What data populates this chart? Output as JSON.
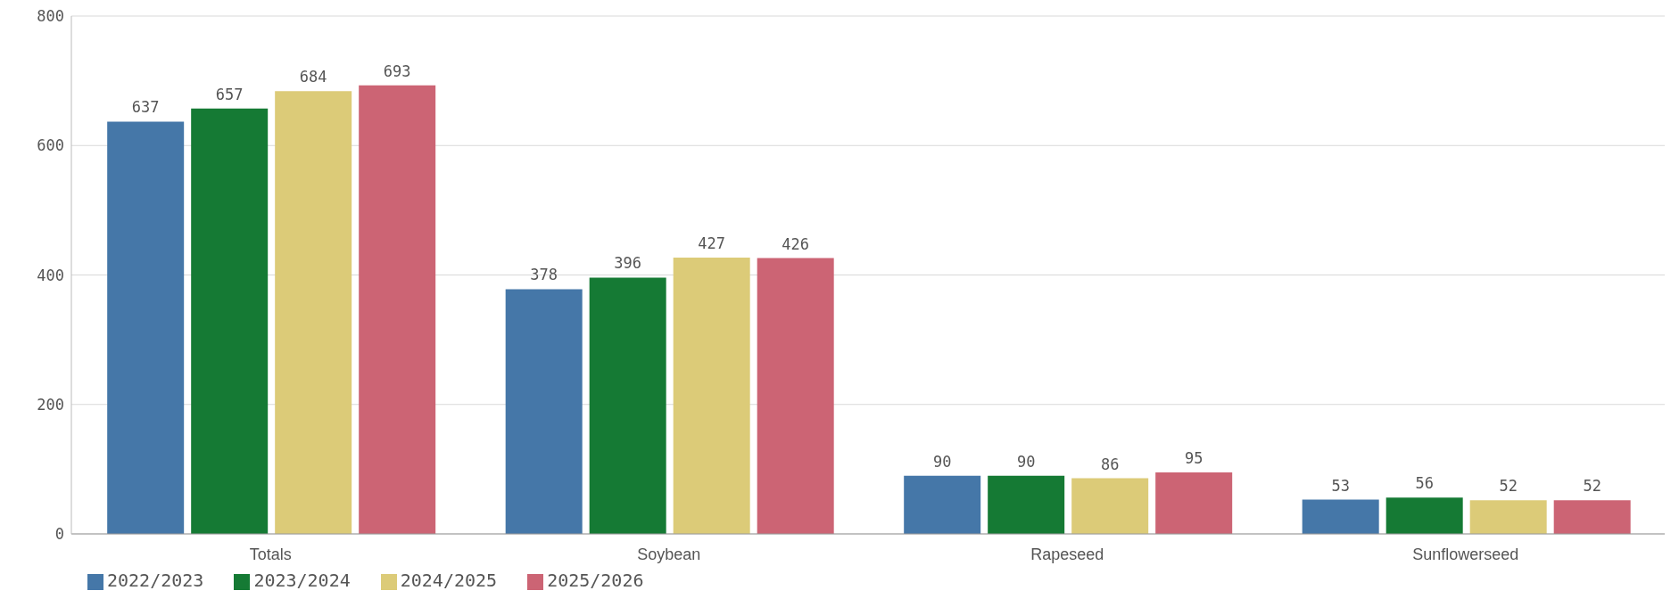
{
  "chart_data": {
    "type": "bar",
    "categories": [
      "Totals",
      "Soybean",
      "Rapeseed",
      "Sunflowerseed"
    ],
    "series": [
      {
        "name": "2022/2023",
        "color": "#4577a8",
        "values": [
          637,
          378,
          90,
          53
        ]
      },
      {
        "name": "2023/2024",
        "color": "#157a34",
        "values": [
          657,
          396,
          90,
          56
        ]
      },
      {
        "name": "2024/2025",
        "color": "#dccb78",
        "values": [
          684,
          427,
          86,
          52
        ]
      },
      {
        "name": "2025/2026",
        "color": "#cc6474",
        "values": [
          693,
          426,
          95,
          52
        ]
      }
    ],
    "ylim": [
      0,
      800
    ],
    "yticks": [
      0,
      200,
      400,
      600,
      800
    ],
    "grid": "y",
    "legend": "bottom left",
    "data_labels": true
  }
}
